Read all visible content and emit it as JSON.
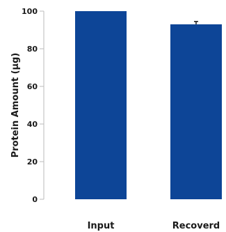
{
  "chart_data": {
    "type": "bar",
    "categories": [
      "Input",
      "Recoverd"
    ],
    "values": [
      100,
      93
    ],
    "errors": [
      0,
      1.5
    ],
    "ylabel": "Protein Amount (µg)",
    "xlabel": "",
    "ylim": [
      0,
      100
    ],
    "yticks": [
      0,
      20,
      40,
      60,
      80,
      100
    ],
    "bar_color": "#0d4597",
    "grid": false
  }
}
